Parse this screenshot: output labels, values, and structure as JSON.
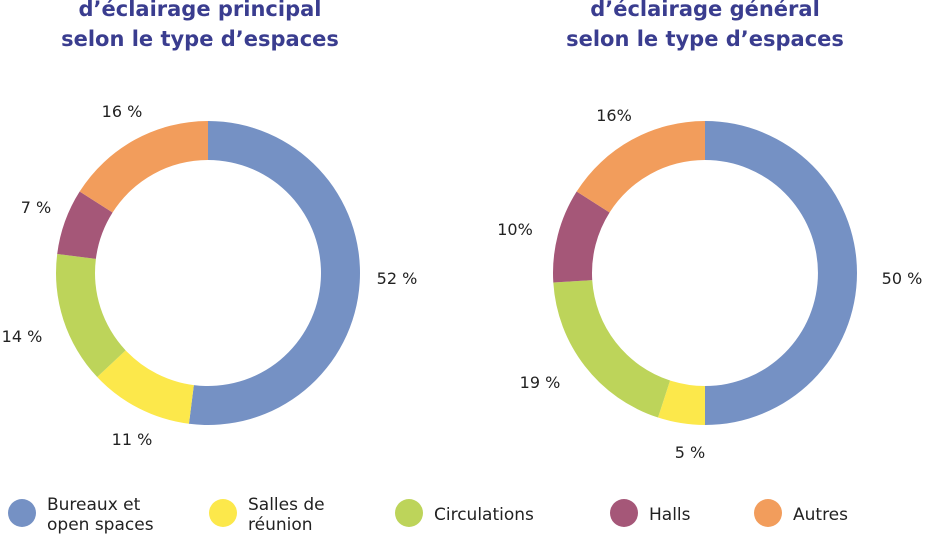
{
  "colors": {
    "bureaux": "#7591c4",
    "salles": "#fce84b",
    "circulations": "#bdd45a",
    "halls": "#a55778",
    "autres": "#f29d5c"
  },
  "legend": [
    {
      "key": "bureaux",
      "lines": [
        "Bureaux et",
        "open spaces"
      ]
    },
    {
      "key": "salles",
      "lines": [
        "Salles de",
        "réunion"
      ]
    },
    {
      "key": "circulations",
      "lines": [
        "Circulations"
      ]
    },
    {
      "key": "halls",
      "lines": [
        "Halls"
      ]
    },
    {
      "key": "autres",
      "lines": [
        "Autres"
      ]
    }
  ],
  "chart_data": [
    {
      "type": "pie",
      "title_lines": [
        "d’éclairage principal",
        "selon le type d’espaces"
      ],
      "categories": [
        "Bureaux et open spaces",
        "Salles de réunion",
        "Circulations",
        "Halls",
        "Autres"
      ],
      "values": [
        52,
        11,
        14,
        7,
        16
      ],
      "labels": [
        "52 %",
        "11 %",
        "14 %",
        "7 %",
        "16 %"
      ]
    },
    {
      "type": "pie",
      "title_lines": [
        "d’éclairage général",
        "selon le type d’espaces"
      ],
      "categories": [
        "Bureaux et open spaces",
        "Salles de réunion",
        "Circulations",
        "Halls",
        "Autres"
      ],
      "values": [
        50,
        5,
        19,
        10,
        16
      ],
      "labels": [
        "50 %",
        "5 %",
        "19 %",
        "10%",
        "16%"
      ]
    }
  ]
}
